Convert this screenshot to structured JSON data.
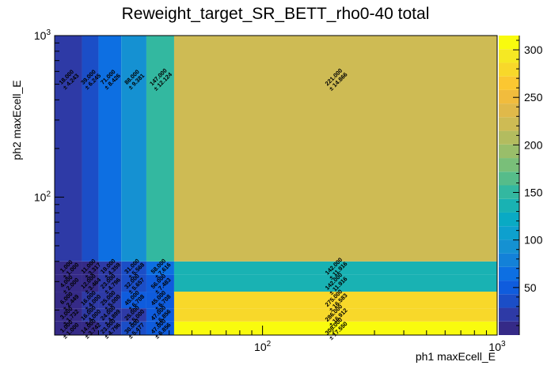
{
  "chart_data": {
    "type": "heatmap",
    "title": "Reweight_target_SR_BETT_rho0-40 total",
    "xlabel": "ph1 maxEcell_E",
    "ylabel": "ph2 maxEcell_E",
    "x_scale": "log",
    "y_scale": "log",
    "xlim": [
      13,
      1000
    ],
    "ylim": [
      14,
      1000
    ],
    "x_ticks": [
      {
        "value": 100,
        "base": "10",
        "exp": "2"
      },
      {
        "value": 1000,
        "base": "10",
        "exp": "3"
      }
    ],
    "y_ticks": [
      {
        "value": 100,
        "base": "10",
        "exp": "2"
      },
      {
        "value": 1000,
        "base": "10",
        "exp": "3"
      }
    ],
    "x_edges": [
      13,
      17,
      20,
      25,
      32,
      42,
      1000
    ],
    "y_edges": [
      14,
      17,
      20.5,
      26,
      33,
      40,
      1000
    ],
    "cells": [
      [
        {
          "v": 1,
          "e": "± 1.000"
        },
        {
          "v": 14,
          "e": "± 3.742"
        },
        {
          "v": 23,
          "e": "± 4.796"
        },
        {
          "v": 30,
          "e": "± 5.477"
        },
        {
          "v": 47,
          "e": "± 6.856"
        },
        {
          "v": 308,
          "e": "± 17.550"
        }
      ],
      [
        {
          "v": 3,
          "e": "± 1.732"
        },
        {
          "v": 16,
          "e": "± 4.000"
        },
        {
          "v": 24,
          "e": "± 4.899"
        },
        {
          "v": 25,
          "e": "± 5.000"
        },
        {
          "v": 47,
          "e": "± 6.856"
        },
        {
          "v": 286,
          "e": "± 16.912"
        }
      ],
      [
        {
          "v": 6,
          "e": "± 2.449"
        },
        {
          "v": 16,
          "e": "± 4.000"
        },
        {
          "v": 25,
          "e": "± 5.000"
        },
        {
          "v": 45,
          "e": "± 6.708"
        },
        {
          "v": 45,
          "e": "± 6.708"
        },
        {
          "v": 275,
          "e": "± 16.583"
        }
      ],
      [
        {
          "v": 4,
          "e": "± 2.000"
        },
        {
          "v": 12,
          "e": "± 3.464"
        },
        {
          "v": 23,
          "e": "± 4.796"
        },
        {
          "v": 32,
          "e": "± 5.657"
        },
        {
          "v": 56,
          "e": "± 7.483"
        },
        {
          "v": 142,
          "e": "± 11.916"
        }
      ],
      [
        {
          "v": 1,
          "e": "± 1.000"
        },
        {
          "v": 11,
          "e": "± 3.317"
        },
        {
          "v": 19,
          "e": "± 4.359"
        },
        {
          "v": 31,
          "e": "± 5.568"
        },
        {
          "v": 58,
          "e": "± 7.616"
        },
        {
          "v": 142,
          "e": "± 11.916"
        }
      ],
      [
        {
          "v": 18,
          "e": "± 4.243"
        },
        {
          "v": 39,
          "e": "± 6.245"
        },
        {
          "v": 71,
          "e": "± 8.426"
        },
        {
          "v": 88,
          "e": "± 9.381"
        },
        {
          "v": 147,
          "e": "± 12.124"
        },
        {
          "v": 221,
          "e": "± 14.866"
        }
      ]
    ],
    "zlim": [
      0,
      315
    ],
    "z_ticks": [
      50,
      100,
      150,
      200,
      250,
      300
    ],
    "palette": [
      "#352a87",
      "#2e3aa6",
      "#1b4ec7",
      "#0f5cdd",
      "#0d6fe2",
      "#1381d8",
      "#1591d2",
      "#0ea0ce",
      "#09aac4",
      "#19b2b3",
      "#33b8a0",
      "#56bc8a",
      "#79bf79",
      "#99be6a",
      "#b3bc5f",
      "#cebb54",
      "#e0b94a",
      "#f1bc3d",
      "#fbc731",
      "#f8d82a",
      "#f5e823",
      "#f9fb0e"
    ]
  }
}
